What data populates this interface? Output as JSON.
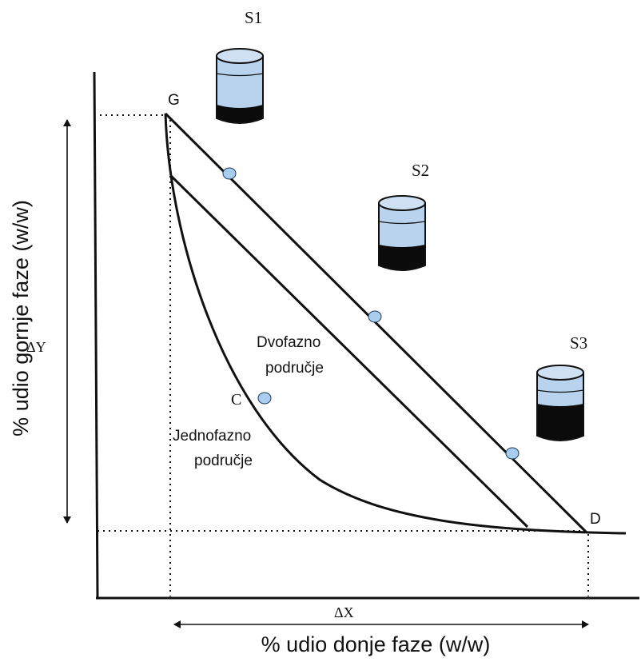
{
  "axes": {
    "xlabel": "% udio donje faze (w/w)",
    "ylabel": "% udio gornje faze (w/w)"
  },
  "points": {
    "g": "G",
    "c": "C",
    "d": "D"
  },
  "regions": {
    "two_phase_line1": "Dvofazno",
    "two_phase_line2": "područje",
    "one_phase_line1": "Jednofazno",
    "one_phase_line2": "područje"
  },
  "deltas": {
    "delta_x": "ΔX",
    "delta_y": "ΔY"
  },
  "systems": {
    "s1": "S1",
    "s2": "S2",
    "s3": "S3"
  },
  "colors": {
    "line": "#111111",
    "upper_phase": "#b9d3ef",
    "lower_phase": "#0b0b0b",
    "marker": "#a9cdee"
  }
}
